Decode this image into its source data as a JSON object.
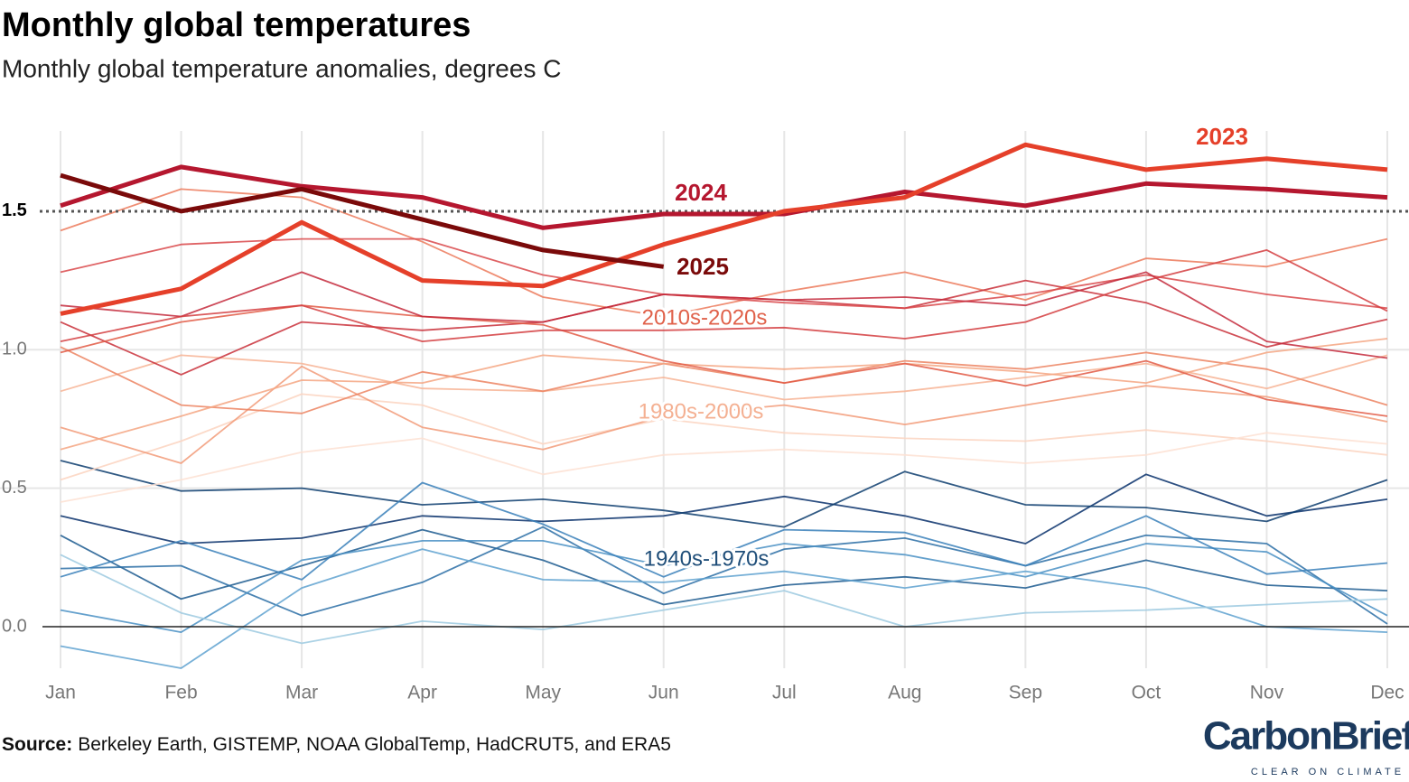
{
  "chart_data": {
    "type": "line",
    "title": "Monthly global temperatures",
    "subtitle": "Monthly global temperature anomalies, degrees C",
    "categories": [
      "Jan",
      "Feb",
      "Mar",
      "Apr",
      "May",
      "Jun",
      "Jul",
      "Aug",
      "Sep",
      "Oct",
      "Nov",
      "Dec"
    ],
    "ylim": [
      -0.15,
      1.79
    ],
    "yticks": [
      {
        "value": 0,
        "label": "0.0"
      },
      0.5,
      {
        "value": 1,
        "label": "1.0"
      },
      1.5
    ],
    "reference_line": 1.5,
    "grid": true,
    "series": [
      {
        "name": "2024",
        "color": "#b5172f",
        "values": [
          1.52,
          1.66,
          1.59,
          1.55,
          1.44,
          1.49,
          1.49,
          1.57,
          1.52,
          1.6,
          1.58,
          1.55
        ]
      },
      {
        "name": "2023",
        "color": "#e5402a",
        "values": [
          1.13,
          1.22,
          1.46,
          1.25,
          1.23,
          1.38,
          1.5,
          1.55,
          1.74,
          1.65,
          1.69,
          1.65
        ]
      },
      {
        "name": "2025",
        "color": "#7a0a0a",
        "values": [
          1.63,
          1.5,
          1.58,
          1.47,
          1.36,
          1.3,
          null,
          null,
          null,
          null,
          null,
          null
        ]
      }
    ],
    "background": [
      {
        "label": "1940s-1970s",
        "label_color": "#1f4e79",
        "lines": [
          {
            "color": "#08306b",
            "values": [
              0.4,
              0.3,
              0.32,
              0.4,
              0.38,
              0.4,
              0.47,
              0.4,
              0.3,
              0.55,
              0.4,
              0.46
            ]
          },
          {
            "color": "#1c5a8f",
            "values": [
              0.33,
              0.1,
              0.22,
              0.35,
              0.24,
              0.08,
              0.15,
              0.18,
              0.14,
              0.24,
              0.15,
              0.13
            ]
          },
          {
            "color": "#0d3d6e",
            "values": [
              0.6,
              0.49,
              0.5,
              0.44,
              0.46,
              0.42,
              0.36,
              0.56,
              0.44,
              0.43,
              0.38,
              0.53
            ]
          },
          {
            "color": "#2b6ea6",
            "values": [
              0.21,
              0.22,
              0.04,
              0.16,
              0.36,
              0.12,
              0.28,
              0.32,
              0.22,
              0.33,
              0.3,
              0.01
            ]
          },
          {
            "color": "#4a90c4",
            "values": [
              0.06,
              -0.02,
              0.24,
              0.31,
              0.31,
              0.22,
              0.3,
              0.26,
              0.18,
              0.3,
              0.27,
              0.04
            ]
          },
          {
            "color": "#5fa2d0",
            "values": [
              -0.07,
              -0.15,
              0.14,
              0.28,
              0.17,
              0.16,
              0.2,
              0.14,
              0.2,
              0.14,
              0.0,
              -0.02
            ]
          },
          {
            "color": "#3a80ba",
            "values": [
              0.18,
              0.31,
              0.17,
              0.52,
              0.37,
              0.18,
              0.35,
              0.34,
              0.22,
              0.4,
              0.19,
              0.23
            ]
          },
          {
            "color": "#9ecae1",
            "values": [
              0.26,
              0.05,
              -0.06,
              0.02,
              -0.01,
              0.06,
              0.13,
              0.0,
              0.05,
              0.06,
              0.08,
              0.1
            ]
          }
        ]
      },
      {
        "label": "1980s-2000s",
        "label_color": "#f4b092",
        "lines": [
          {
            "color": "#fbd3bf",
            "values": [
              0.53,
              0.67,
              0.84,
              0.8,
              0.66,
              0.75,
              0.7,
              0.68,
              0.67,
              0.71,
              0.67,
              0.62
            ]
          },
          {
            "color": "#f7b394",
            "values": [
              0.85,
              0.98,
              0.95,
              0.86,
              0.85,
              0.9,
              0.82,
              0.85,
              0.9,
              0.95,
              0.86,
              0.98
            ]
          },
          {
            "color": "#f29b79",
            "values": [
              0.72,
              0.59,
              0.94,
              0.72,
              0.64,
              0.76,
              0.8,
              0.73,
              0.8,
              0.87,
              0.83,
              0.74
            ]
          },
          {
            "color": "#ec8462",
            "values": [
              1.01,
              0.8,
              0.77,
              0.92,
              0.85,
              0.95,
              0.88,
              0.96,
              0.93,
              0.99,
              0.93,
              0.8
            ]
          },
          {
            "color": "#f5a683",
            "values": [
              0.64,
              0.76,
              0.89,
              0.88,
              0.98,
              0.95,
              0.93,
              0.95,
              0.92,
              0.88,
              0.99,
              1.04
            ]
          },
          {
            "color": "#fde0d2",
            "values": [
              0.45,
              0.53,
              0.63,
              0.68,
              0.55,
              0.62,
              0.64,
              0.62,
              0.59,
              0.62,
              0.7,
              0.66
            ]
          }
        ]
      },
      {
        "label": "2010s-2020s",
        "label_color": "#e0614a",
        "lines": [
          {
            "color": "#ec7a5c",
            "values": [
              1.43,
              1.58,
              1.55,
              1.39,
              1.19,
              1.12,
              1.21,
              1.28,
              1.18,
              1.33,
              1.3,
              1.4
            ]
          },
          {
            "color": "#c9303a",
            "values": [
              1.1,
              0.91,
              1.1,
              1.07,
              1.1,
              1.2,
              1.18,
              1.15,
              1.25,
              1.17,
              1.01,
              1.11
            ]
          },
          {
            "color": "#d9484a",
            "values": [
              1.28,
              1.38,
              1.4,
              1.4,
              1.27,
              1.2,
              1.17,
              1.15,
              1.2,
              1.27,
              1.2,
              1.15
            ]
          },
          {
            "color": "#e25b45",
            "values": [
              0.99,
              1.1,
              1.16,
              1.12,
              1.09,
              0.96,
              0.88,
              0.95,
              0.87,
              0.96,
              0.82,
              0.76
            ]
          },
          {
            "color": "#c42a3c",
            "values": [
              1.16,
              1.12,
              1.28,
              1.12,
              1.1,
              1.2,
              1.18,
              1.19,
              1.16,
              1.28,
              1.03,
              0.97
            ]
          },
          {
            "color": "#d33d40",
            "values": [
              1.03,
              1.12,
              1.16,
              1.03,
              1.07,
              1.07,
              1.08,
              1.04,
              1.1,
              1.25,
              1.36,
              1.14
            ]
          }
        ]
      }
    ],
    "source_label": "Source:",
    "source": "Berkeley Earth, GISTEMP, NOAA GlobalTemp, HadCRUT5, and ERA5",
    "logo": {
      "name": "CarbonBrief",
      "tagline": "CLEAR ON CLIMATE"
    }
  }
}
